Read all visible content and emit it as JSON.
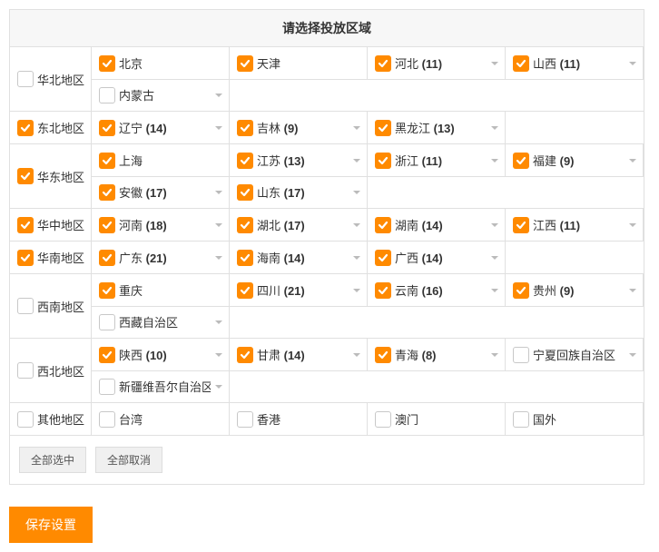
{
  "title": "请选择投放区域",
  "buttons": {
    "select_all": "全部选中",
    "deselect_all": "全部取消",
    "save": "保存设置"
  },
  "colors": {
    "accent": "#ff8a00",
    "border": "#e0e0e0"
  },
  "regions": [
    {
      "label": "华北地区",
      "checked": false,
      "items": [
        {
          "name": "北京",
          "checked": true,
          "dropdown": false
        },
        {
          "name": "天津",
          "checked": true,
          "dropdown": false
        },
        {
          "name": "河北",
          "count": 11,
          "checked": true,
          "dropdown": true
        },
        {
          "name": "山西",
          "count": 11,
          "checked": true,
          "dropdown": true
        },
        {
          "name": "内蒙古",
          "checked": false,
          "dropdown": true
        }
      ]
    },
    {
      "label": "东北地区",
      "checked": true,
      "items": [
        {
          "name": "辽宁",
          "count": 14,
          "checked": true,
          "dropdown": true
        },
        {
          "name": "吉林",
          "count": 9,
          "checked": true,
          "dropdown": true
        },
        {
          "name": "黑龙江",
          "count": 13,
          "checked": true,
          "dropdown": true
        }
      ]
    },
    {
      "label": "华东地区",
      "checked": true,
      "items": [
        {
          "name": "上海",
          "checked": true,
          "dropdown": false
        },
        {
          "name": "江苏",
          "count": 13,
          "checked": true,
          "dropdown": true
        },
        {
          "name": "浙江",
          "count": 11,
          "checked": true,
          "dropdown": true
        },
        {
          "name": "福建",
          "count": 9,
          "checked": true,
          "dropdown": true
        },
        {
          "name": "安徽",
          "count": 17,
          "checked": true,
          "dropdown": true
        },
        {
          "name": "山东",
          "count": 17,
          "checked": true,
          "dropdown": true
        }
      ]
    },
    {
      "label": "华中地区",
      "checked": true,
      "items": [
        {
          "name": "河南",
          "count": 18,
          "checked": true,
          "dropdown": true
        },
        {
          "name": "湖北",
          "count": 17,
          "checked": true,
          "dropdown": true
        },
        {
          "name": "湖南",
          "count": 14,
          "checked": true,
          "dropdown": true
        },
        {
          "name": "江西",
          "count": 11,
          "checked": true,
          "dropdown": true
        }
      ]
    },
    {
      "label": "华南地区",
      "checked": true,
      "items": [
        {
          "name": "广东",
          "count": 21,
          "checked": true,
          "dropdown": true
        },
        {
          "name": "海南",
          "count": 14,
          "checked": true,
          "dropdown": true
        },
        {
          "name": "广西",
          "count": 14,
          "checked": true,
          "dropdown": true
        }
      ]
    },
    {
      "label": "西南地区",
      "checked": false,
      "items": [
        {
          "name": "重庆",
          "checked": true,
          "dropdown": false
        },
        {
          "name": "四川",
          "count": 21,
          "checked": true,
          "dropdown": true
        },
        {
          "name": "云南",
          "count": 16,
          "checked": true,
          "dropdown": true
        },
        {
          "name": "贵州",
          "count": 9,
          "checked": true,
          "dropdown": true
        },
        {
          "name": "西藏自治区",
          "checked": false,
          "dropdown": true
        }
      ]
    },
    {
      "label": "西北地区",
      "checked": false,
      "items": [
        {
          "name": "陕西",
          "count": 10,
          "checked": true,
          "dropdown": true
        },
        {
          "name": "甘肃",
          "count": 14,
          "checked": true,
          "dropdown": true
        },
        {
          "name": "青海",
          "count": 8,
          "checked": true,
          "dropdown": true
        },
        {
          "name": "宁夏回族自治区",
          "checked": false,
          "dropdown": true
        },
        {
          "name": "新疆维吾尔自治区",
          "checked": false,
          "dropdown": true
        }
      ]
    },
    {
      "label": "其他地区",
      "checked": false,
      "items": [
        {
          "name": "台湾",
          "checked": false,
          "dropdown": false
        },
        {
          "name": "香港",
          "checked": false,
          "dropdown": false
        },
        {
          "name": "澳门",
          "checked": false,
          "dropdown": false
        },
        {
          "name": "国外",
          "checked": false,
          "dropdown": false
        }
      ]
    }
  ]
}
